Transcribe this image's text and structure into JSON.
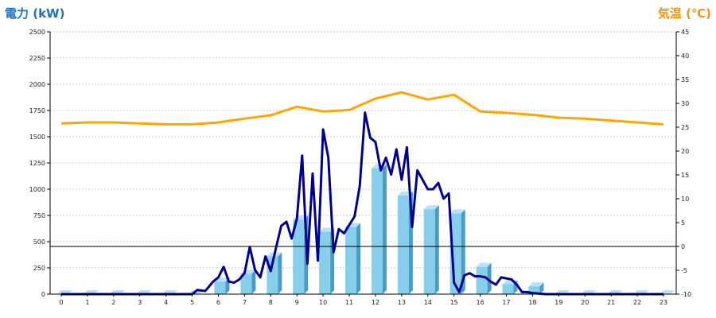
{
  "chart_data": {
    "type": "bar+line",
    "left_axis_title": "電力 (kW)",
    "right_axis_title": "気温 (℃)",
    "x_ticks": [
      "0",
      "1",
      "2",
      "3",
      "4",
      "5",
      "6",
      "7",
      "8",
      "9",
      "10",
      "11",
      "12",
      "13",
      "14",
      "15",
      "16",
      "17",
      "18",
      "19",
      "20",
      "21",
      "22",
      "23"
    ],
    "y_left_range": [
      0,
      2500
    ],
    "y_left_ticks": [
      "0",
      "250",
      "500",
      "750",
      "1000",
      "1250",
      "1500",
      "1750",
      "2000",
      "2250",
      "2500"
    ],
    "y_right_range": [
      -10,
      45
    ],
    "y_right_ticks": [
      "-10",
      "-5",
      "0",
      "5",
      "10",
      "15",
      "20",
      "25",
      "30",
      "35",
      "40",
      "45"
    ],
    "grid": true,
    "colors": {
      "bar_face": "#87ceeb",
      "bar_side": "#4a9cc4",
      "bar_top": "#b6e3f6",
      "power_line": "#00008b",
      "temp_line": "#ffa500",
      "left_title": "#1a73c6",
      "right_title": "#f0950f"
    },
    "hourly_bars": {
      "x": [
        0,
        1,
        2,
        3,
        4,
        5,
        6,
        7,
        8,
        9,
        10,
        11,
        12,
        13,
        14,
        15,
        16,
        17,
        18,
        19,
        20,
        21,
        22,
        23
      ],
      "values": [
        0,
        0,
        0,
        0,
        0,
        0,
        120,
        195,
        360,
        710,
        595,
        640,
        1200,
        940,
        810,
        770,
        260,
        95,
        75,
        0,
        0,
        0,
        0,
        0
      ]
    },
    "power_line": {
      "x": [
        0,
        1,
        2,
        3,
        4,
        5,
        5.2,
        5.5,
        5.8,
        6,
        6.2,
        6.4,
        6.6,
        6.8,
        7,
        7.2,
        7.4,
        7.6,
        7.8,
        8,
        8.2,
        8.4,
        8.6,
        8.8,
        9,
        9.2,
        9.4,
        9.6,
        9.8,
        10,
        10.2,
        10.4,
        10.6,
        10.8,
        11,
        11.2,
        11.4,
        11.6,
        11.8,
        12,
        12.2,
        12.4,
        12.6,
        12.8,
        13,
        13.2,
        13.4,
        13.6,
        13.8,
        14,
        14.2,
        14.4,
        14.6,
        14.8,
        15,
        15.2,
        15.4,
        15.6,
        15.8,
        16,
        16.2,
        16.4,
        16.6,
        16.8,
        17,
        17.2,
        17.4,
        17.6,
        17.8,
        18,
        18.5,
        19,
        20,
        21,
        22,
        23
      ],
      "values": [
        0,
        0,
        0,
        0,
        0,
        0,
        40,
        30,
        120,
        160,
        260,
        120,
        110,
        140,
        200,
        450,
        230,
        160,
        360,
        220,
        440,
        650,
        690,
        530,
        720,
        1320,
        290,
        1150,
        320,
        1570,
        1300,
        400,
        620,
        580,
        660,
        740,
        1030,
        1730,
        1490,
        1450,
        1180,
        1300,
        1140,
        1380,
        1090,
        1400,
        640,
        1180,
        1090,
        1000,
        1000,
        1060,
        910,
        960,
        110,
        20,
        180,
        200,
        170,
        170,
        160,
        120,
        90,
        160,
        150,
        140,
        90,
        20,
        20,
        10,
        0,
        0,
        0,
        0,
        0,
        0
      ]
    },
    "temperature_line": {
      "x": [
        0,
        1,
        2,
        3,
        4,
        5,
        6,
        7,
        8,
        9,
        10,
        11,
        12,
        13,
        14,
        15,
        16,
        17,
        18,
        19,
        20,
        21,
        22,
        23
      ],
      "values": [
        25.8,
        26.0,
        26.0,
        25.8,
        25.6,
        25.6,
        26.0,
        26.8,
        27.5,
        29.3,
        28.3,
        28.6,
        31.0,
        32.3,
        30.8,
        31.8,
        28.3,
        28.0,
        27.6,
        27.0,
        26.8,
        26.4,
        26.0,
        25.6
      ]
    }
  }
}
